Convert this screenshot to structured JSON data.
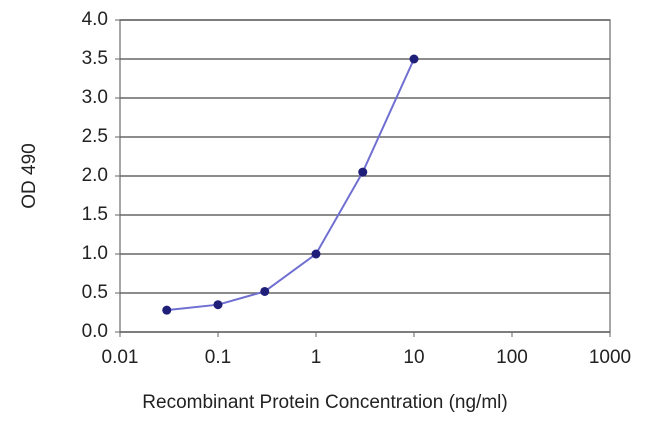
{
  "chart_data": {
    "type": "line",
    "xlabel": "Recombinant Protein Concentration (ng/ml)",
    "ylabel": "OD 490",
    "x": [
      0.03,
      0.1,
      0.3,
      1,
      3,
      10
    ],
    "series": [
      {
        "name": "OD 490",
        "color": "#6f6fd2",
        "marker_color": "#1f1f7a",
        "values": [
          0.28,
          0.35,
          0.52,
          1.0,
          2.05,
          3.5
        ]
      }
    ],
    "xscale": "log",
    "xlim": [
      0.01,
      1000
    ],
    "xticks": [
      0.01,
      0.1,
      1,
      10,
      100,
      1000
    ],
    "ylim": [
      0,
      4
    ],
    "yticks": [
      {
        "value": 0,
        "label": "0.0"
      },
      {
        "value": 0.5,
        "label": "0.5"
      },
      {
        "value": 1,
        "label": "1.0"
      },
      {
        "value": 1.5,
        "label": "1.5"
      },
      {
        "value": 2,
        "label": "2.0"
      },
      {
        "value": 2.5,
        "label": "2.5"
      },
      {
        "value": 3,
        "label": "3.0"
      },
      {
        "value": 3.5,
        "label": "3.5"
      },
      {
        "value": 4,
        "label": "4.0"
      }
    ],
    "grid": true
  }
}
